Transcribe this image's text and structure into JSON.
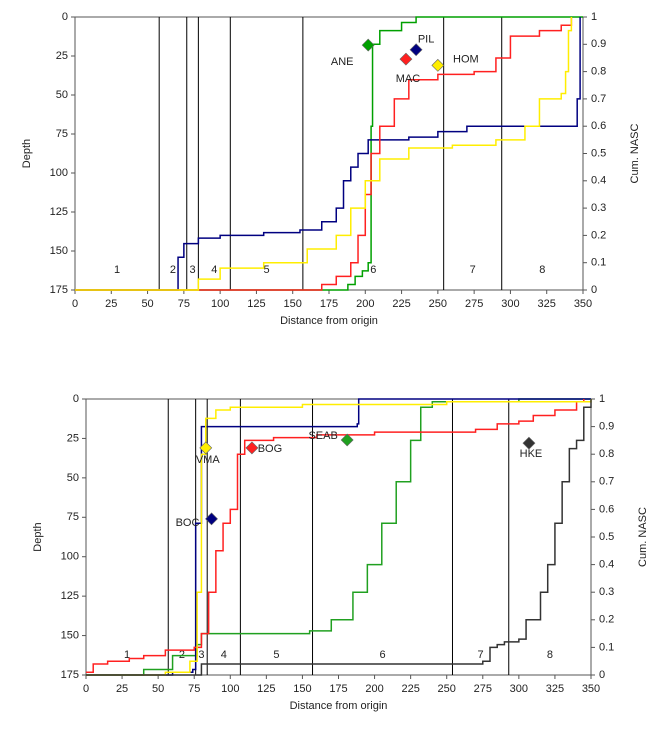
{
  "chart_data": [
    {
      "type": "step",
      "xlabel": "Distance from origin",
      "ylabel": "Depth",
      "y2label": "Cum. NASC",
      "xlim": [
        0,
        350
      ],
      "xticks": [
        0,
        25,
        50,
        75,
        100,
        125,
        150,
        175,
        200,
        225,
        250,
        275,
        300,
        325,
        350
      ],
      "ylim": [
        175,
        0
      ],
      "yticks": [
        0,
        25,
        50,
        75,
        100,
        125,
        150,
        175
      ],
      "y2lim": [
        0,
        1
      ],
      "y2ticks": [
        0,
        0.1,
        0.2,
        0.3,
        0.4,
        0.5,
        0.6,
        0.7,
        0.8,
        0.9,
        1
      ],
      "boundaries": [
        58,
        77,
        85,
        107,
        157,
        254,
        294
      ],
      "zones": [
        "1",
        "2",
        "3",
        "4",
        "5",
        "6",
        "7",
        "8"
      ],
      "series": [
        {
          "name": "ANE",
          "color": "#00a000",
          "axis": "y2",
          "marker_x": 202,
          "marker_depth": 18,
          "x": [
            0,
            180,
            188,
            193,
            198,
            202,
            204,
            205,
            210,
            225,
            235,
            350
          ],
          "values": [
            0,
            0,
            0.02,
            0.05,
            0.07,
            0.1,
            0.6,
            0.9,
            0.95,
            0.98,
            1,
            1
          ]
        },
        {
          "name": "PIL",
          "color": "#000080",
          "axis": "y2",
          "marker_x": 235,
          "marker_depth": 21,
          "x": [
            0,
            70,
            71,
            75,
            85,
            100,
            130,
            155,
            170,
            180,
            185,
            190,
            195,
            202,
            230,
            250,
            270,
            345,
            346,
            348
          ],
          "values": [
            0,
            0,
            0.12,
            0.17,
            0.19,
            0.2,
            0.21,
            0.22,
            0.25,
            0.3,
            0.4,
            0.45,
            0.5,
            0.55,
            0.56,
            0.58,
            0.6,
            0.6,
            0.7,
            1
          ]
        },
        {
          "name": "MAC",
          "color": "#ff2020",
          "axis": "y2",
          "marker_x": 228,
          "marker_depth": 27,
          "x": [
            0,
            165,
            170,
            180,
            190,
            195,
            200,
            204,
            210,
            220,
            230,
            250,
            275,
            290,
            300,
            320,
            335,
            342
          ],
          "values": [
            0,
            0,
            0.02,
            0.05,
            0.1,
            0.2,
            0.35,
            0.5,
            0.6,
            0.7,
            0.77,
            0.79,
            0.8,
            0.85,
            0.93,
            0.95,
            0.97,
            1
          ]
        },
        {
          "name": "HOM",
          "color": "#ffee00",
          "axis": "y2",
          "marker_x": 250,
          "marker_depth": 31,
          "x": [
            0,
            80,
            85,
            100,
            130,
            160,
            180,
            190,
            200,
            210,
            230,
            260,
            290,
            310,
            320,
            335,
            338,
            340,
            342
          ],
          "values": [
            0,
            0,
            0.04,
            0.08,
            0.1,
            0.15,
            0.2,
            0.3,
            0.4,
            0.48,
            0.52,
            0.53,
            0.55,
            0.6,
            0.7,
            0.72,
            0.8,
            0.95,
            1
          ]
        }
      ]
    },
    {
      "type": "step",
      "xlabel": "Distance from origin",
      "ylabel": "Depth",
      "y2label": "Cum. NASC",
      "xlim": [
        0,
        350
      ],
      "xticks": [
        0,
        25,
        50,
        75,
        100,
        125,
        150,
        175,
        200,
        225,
        250,
        275,
        300,
        325,
        350
      ],
      "ylim": [
        175,
        0
      ],
      "yticks": [
        0,
        25,
        50,
        75,
        100,
        125,
        150,
        175
      ],
      "y2lim": [
        0,
        1
      ],
      "y2ticks": [
        0,
        0.1,
        0.2,
        0.3,
        0.4,
        0.5,
        0.6,
        0.7,
        0.8,
        0.9,
        1
      ],
      "boundaries": [
        57,
        76,
        84,
        107,
        157,
        254,
        293
      ],
      "zones": [
        "1",
        "2",
        "3",
        "4",
        "5",
        "6",
        "7",
        "8"
      ],
      "series": [
        {
          "name": "SEAB",
          "color": "#20a020",
          "axis": "y2",
          "marker_x": 181,
          "marker_depth": 26,
          "x": [
            0,
            40,
            60,
            77,
            80,
            155,
            170,
            185,
            195,
            205,
            215,
            225,
            232,
            240,
            270,
            300,
            350
          ],
          "values": [
            0,
            0.02,
            0.07,
            0.11,
            0.15,
            0.16,
            0.2,
            0.3,
            0.4,
            0.55,
            0.7,
            0.85,
            0.97,
            0.99,
            0.99,
            1,
            1
          ]
        },
        {
          "name": "BOC",
          "color": "#000080",
          "axis": "y2",
          "marker_x": 87,
          "marker_depth": 76,
          "x": [
            0,
            60,
            74,
            76,
            78,
            80,
            188,
            189,
            350
          ],
          "values": [
            0,
            0.01,
            0.02,
            0.55,
            0.55,
            0.9,
            0.91,
            1,
            1
          ]
        },
        {
          "name": "BOG",
          "color": "#ff2020",
          "axis": "y2",
          "marker_x": 115,
          "marker_depth": 31,
          "x": [
            0,
            5,
            15,
            30,
            40,
            55,
            75,
            80,
            85,
            90,
            95,
            100,
            105,
            110,
            130,
            160,
            200,
            270,
            285,
            300,
            310,
            325,
            340,
            345
          ],
          "values": [
            0.01,
            0.04,
            0.05,
            0.06,
            0.07,
            0.09,
            0.1,
            0.15,
            0.3,
            0.45,
            0.55,
            0.6,
            0.8,
            0.85,
            0.86,
            0.87,
            0.88,
            0.89,
            0.91,
            0.92,
            0.94,
            0.96,
            0.99,
            1
          ]
        },
        {
          "name": "VMA",
          "color": "#ffee00",
          "axis": "y2",
          "marker_x": 83,
          "marker_depth": 31,
          "x": [
            0,
            55,
            72,
            77,
            80,
            83,
            90,
            100,
            150,
            250,
            350
          ],
          "values": [
            0,
            0.01,
            0.05,
            0.3,
            0.8,
            0.93,
            0.96,
            0.97,
            0.98,
            0.99,
            1
          ]
        },
        {
          "name": "HKE",
          "color": "#333333",
          "axis": "y2",
          "marker_x": 307,
          "marker_depth": 28,
          "x": [
            0,
            80,
            275,
            280,
            285,
            290,
            300,
            305,
            315,
            320,
            325,
            330,
            335,
            340,
            345,
            350
          ],
          "values": [
            0,
            0.04,
            0.05,
            0.1,
            0.11,
            0.12,
            0.13,
            0.2,
            0.3,
            0.4,
            0.55,
            0.7,
            0.82,
            0.85,
            0.97,
            1
          ]
        }
      ]
    }
  ]
}
